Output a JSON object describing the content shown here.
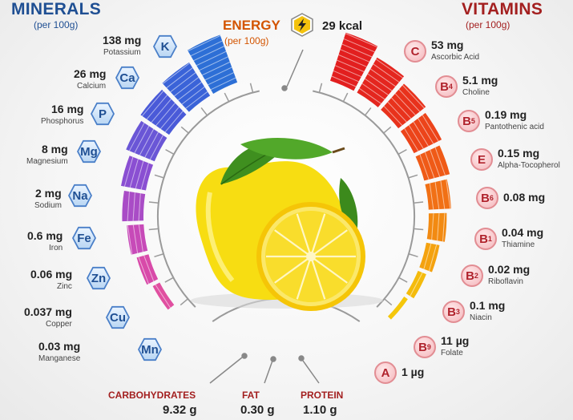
{
  "minerals": {
    "title": "MINERALS",
    "subtitle": "(per 100g)",
    "color": "#1f4f93",
    "items": [
      {
        "symbol": "K",
        "amount": "138 mg",
        "name": "Potassium",
        "bar_color": "#2d6fd6",
        "fill": 0.9
      },
      {
        "symbol": "Ca",
        "amount": "26 mg",
        "name": "Calcium",
        "bar_color": "#3a63d8",
        "fill": 0.7
      },
      {
        "symbol": "P",
        "amount": "16 mg",
        "name": "Phosphorus",
        "bar_color": "#4a5ad8",
        "fill": 0.62
      },
      {
        "symbol": "Mg",
        "amount": "8 mg",
        "name": "Magnesium",
        "bar_color": "#6a56d6",
        "fill": 0.55
      },
      {
        "symbol": "Na",
        "amount": "2 mg",
        "name": "Sodium",
        "bar_color": "#8a4fd2",
        "fill": 0.45
      },
      {
        "symbol": "Fe",
        "amount": "0.6 mg",
        "name": "Iron",
        "bar_color": "#a94cc6",
        "fill": 0.38
      },
      {
        "symbol": "Zn",
        "amount": "0.06 mg",
        "name": "Zinc",
        "bar_color": "#c74ab8",
        "fill": 0.3
      },
      {
        "symbol": "Cu",
        "amount": "0.037 mg",
        "name": "Copper",
        "bar_color": "#d84aa9",
        "fill": 0.22
      },
      {
        "symbol": "Mn",
        "amount": "0.03 mg",
        "name": "Manganese",
        "bar_color": "#e04fa0",
        "fill": 0.14
      }
    ]
  },
  "vitamins": {
    "title": "VITAMINS",
    "subtitle": "(per 100g)",
    "color": "#a31f1f",
    "items": [
      {
        "symbol": "C",
        "sub": "",
        "amount": "53 mg",
        "name": "Ascorbic Acid",
        "bar_color": "#e21f1f",
        "fill": 0.9
      },
      {
        "symbol": "B",
        "sub": "4",
        "amount": "5.1 mg",
        "name": "Choline",
        "bar_color": "#e4261f",
        "fill": 0.72
      },
      {
        "symbol": "B",
        "sub": "5",
        "amount": "0.19 mg",
        "name": "Pantothenic acid",
        "bar_color": "#e8321c",
        "fill": 0.62
      },
      {
        "symbol": "E",
        "sub": "",
        "amount": "0.15 mg",
        "name": "Alpha-Tocopherol",
        "bar_color": "#ec441a",
        "fill": 0.55
      },
      {
        "symbol": "B",
        "sub": "6",
        "amount": "0.08 mg",
        "name": "",
        "bar_color": "#ef5a17",
        "fill": 0.47
      },
      {
        "symbol": "B",
        "sub": "1",
        "amount": "0.04 mg",
        "name": "Thiamine",
        "bar_color": "#f17015",
        "fill": 0.4
      },
      {
        "symbol": "B",
        "sub": "2",
        "amount": "0.02 mg",
        "name": "Riboflavin",
        "bar_color": "#f28a12",
        "fill": 0.32
      },
      {
        "symbol": "B",
        "sub": "3",
        "amount": "0.1 mg",
        "name": "Niacin",
        "bar_color": "#f4a20f",
        "fill": 0.24
      },
      {
        "symbol": "B",
        "sub": "9",
        "amount": "11 µg",
        "name": "Folate",
        "bar_color": "#f4bb0c",
        "fill": 0.16
      },
      {
        "symbol": "A",
        "sub": "",
        "amount": "1 µg",
        "name": "",
        "bar_color": "#f5c70b",
        "fill": 0.08
      }
    ]
  },
  "energy": {
    "title": "ENERGY",
    "subtitle": "(per 100g)",
    "value": "29 kcal",
    "icon": "lightning-bolt-icon",
    "color": "#d35400"
  },
  "macros": {
    "carbohydrates": {
      "label": "CARBOHYDRATES",
      "value": "9.32 g"
    },
    "fat": {
      "label": "FAT",
      "value": "0.30 g"
    },
    "protein": {
      "label": "PROTEIN",
      "value": "1.10 g"
    }
  }
}
